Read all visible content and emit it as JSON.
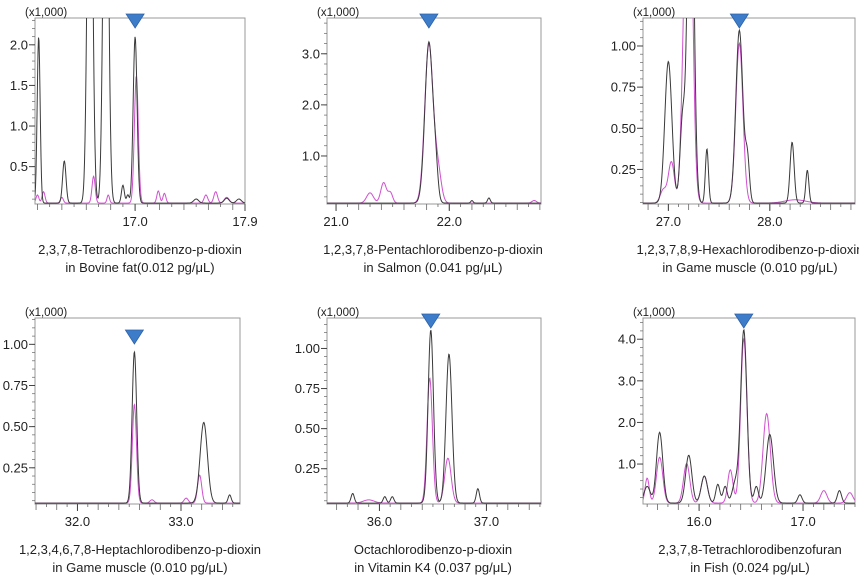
{
  "chart_data": [
    {
      "type": "line",
      "caption_line1": "2,3,7,8-Tetrachlorodibenzo-p-dioxin",
      "caption_line2": "in Bovine fat(0.012 pg/μL)",
      "y_multiplier_label": "(x1,000)",
      "xlim": [
        16.18,
        17.9
      ],
      "ylim": [
        0.04,
        2.33
      ],
      "xticks": [
        "17.0",
        "17.9"
      ],
      "yticks": [
        "0.5",
        "1.0",
        "1.5",
        "2.0"
      ],
      "marker_rt": 17.0,
      "series_colors": [
        "#3a3a3a",
        "#d050d0"
      ],
      "series": [
        {
          "peaks": [
            [
              16.21,
              2.05,
              0.012
            ],
            [
              16.42,
              0.52,
              0.014
            ],
            [
              16.63,
              6,
              0.02
            ],
            [
              16.76,
              6,
              0.02
            ],
            [
              16.9,
              0.22,
              0.012
            ],
            [
              16.94,
              0.1,
              0.01
            ],
            [
              17.0,
              2.05,
              0.016
            ],
            [
              17.5,
              0.05,
              0.02
            ],
            [
              17.75,
              0.06,
              0.02
            ],
            [
              17.85,
              0.05,
              0.02
            ]
          ]
        },
        {
          "peaks": [
            [
              16.2,
              0.1,
              0.012
            ],
            [
              16.25,
              0.14,
              0.012
            ],
            [
              16.4,
              0.07,
              0.012
            ],
            [
              16.66,
              0.33,
              0.013
            ],
            [
              16.78,
              0.1,
              0.01
            ],
            [
              17.01,
              1.57,
              0.016
            ],
            [
              17.19,
              0.15,
              0.012
            ],
            [
              17.24,
              0.12,
              0.012
            ],
            [
              17.58,
              0.1,
              0.015
            ],
            [
              17.66,
              0.14,
              0.015
            ],
            [
              17.75,
              0.07,
              0.02
            ]
          ]
        }
      ]
    },
    {
      "type": "line",
      "caption_line1": "1,2,3,7,8-Pentachlorodibenzo-p-dioxin",
      "caption_line2": "in Salmon (0.041 pg/μL)",
      "y_multiplier_label": "(x1,000)",
      "xlim": [
        20.92,
        22.81
      ],
      "ylim": [
        0.06,
        3.7
      ],
      "xticks": [
        "21.0",
        "22.0"
      ],
      "yticks": [
        "1.0",
        "2.0",
        "3.0"
      ],
      "marker_rt": 21.82,
      "series_colors": [
        "#3a3a3a",
        "#d050d0"
      ],
      "series": [
        {
          "peaks": [
            [
              21.82,
              3.15,
              0.035
            ],
            [
              21.88,
              0.5,
              0.02
            ],
            [
              22.2,
              0.05,
              0.01
            ],
            [
              22.35,
              0.1,
              0.012
            ]
          ]
        },
        {
          "peaks": [
            [
              21.3,
              0.2,
              0.03
            ],
            [
              21.42,
              0.4,
              0.025
            ],
            [
              21.48,
              0.2,
              0.02
            ],
            [
              21.82,
              3.1,
              0.037
            ],
            [
              21.9,
              0.6,
              0.03
            ],
            [
              22.75,
              0.05,
              0.02
            ]
          ]
        }
      ]
    },
    {
      "type": "line",
      "caption_line1": "1,2,3,7,8,9-Hexachlorodibenzo-p-dioxin",
      "caption_line2": "in Game muscle (0.010 pg/μL)",
      "y_multiplier_label": "(x1,000)",
      "xlim": [
        26.75,
        28.84
      ],
      "ylim": [
        0.04,
        1.17
      ],
      "xticks": [
        "27.0",
        "28.0"
      ],
      "yticks": [
        "0.25",
        "0.50",
        "0.75",
        "1.00"
      ],
      "marker_rt": 27.7,
      "series_colors": [
        "#3a3a3a",
        "#d050d0"
      ],
      "series": [
        {
          "peaks": [
            [
              27.0,
              0.86,
              0.035
            ],
            [
              27.14,
              0.5,
              0.025
            ],
            [
              27.22,
              2.5,
              0.03
            ],
            [
              27.38,
              0.33,
              0.015
            ],
            [
              27.7,
              1.05,
              0.035
            ],
            [
              27.78,
              0.25,
              0.02
            ],
            [
              28.22,
              0.37,
              0.02
            ],
            [
              28.37,
              0.2,
              0.015
            ]
          ]
        },
        {
          "peaks": [
            [
              26.95,
              0.08,
              0.03
            ],
            [
              27.03,
              0.25,
              0.03
            ],
            [
              27.14,
              0.35,
              0.025
            ],
            [
              27.2,
              2.5,
              0.035
            ],
            [
              27.7,
              0.97,
              0.035
            ],
            [
              28.25,
              0.02,
              0.1
            ]
          ]
        }
      ]
    },
    {
      "type": "line",
      "caption_line1": "1,2,3,4,6,7,8-Heptachlorodibenzo-p-dioxin",
      "caption_line2": "in Game muscle (0.010 pg/μL)",
      "y_multiplier_label": "(x1,000)",
      "xlim": [
        31.59,
        33.57
      ],
      "ylim": [
        0.03,
        1.16
      ],
      "xticks": [
        "32.0",
        "33.0"
      ],
      "yticks": [
        "0.25",
        "0.50",
        "0.75",
        "1.00"
      ],
      "marker_rt": 32.55,
      "series_colors": [
        "#3a3a3a",
        "#d050d0"
      ],
      "series": [
        {
          "peaks": [
            [
              32.55,
              0.92,
              0.022
            ],
            [
              33.22,
              0.49,
              0.035
            ],
            [
              33.47,
              0.05,
              0.015
            ]
          ]
        },
        {
          "peaks": [
            [
              32.55,
              0.6,
              0.02
            ],
            [
              32.72,
              0.02,
              0.02
            ],
            [
              33.05,
              0.03,
              0.02
            ],
            [
              33.18,
              0.17,
              0.02
            ]
          ]
        }
      ]
    },
    {
      "type": "line",
      "caption_line1": "Octachlorodibenzo-p-dioxin",
      "caption_line2": "in Vitamin K4 (0.037 pg/μL)",
      "y_multiplier_label": "(x1,000)",
      "xlim": [
        35.51,
        37.51
      ],
      "ylim": [
        0.03,
        1.19
      ],
      "xticks": [
        "36.0",
        "37.0"
      ],
      "yticks": [
        "0.25",
        "0.50",
        "0.75",
        "1.00"
      ],
      "marker_rt": 36.48,
      "series_colors": [
        "#3a3a3a",
        "#d050d0"
      ],
      "series": [
        {
          "peaks": [
            [
              35.75,
              0.06,
              0.015
            ],
            [
              36.05,
              0.04,
              0.015
            ],
            [
              36.12,
              0.04,
              0.015
            ],
            [
              36.48,
              1.08,
              0.025
            ],
            [
              36.65,
              0.93,
              0.028
            ],
            [
              36.92,
              0.09,
              0.015
            ]
          ]
        },
        {
          "peaks": [
            [
              35.9,
              0.02,
              0.05
            ],
            [
              36.47,
              0.78,
              0.025
            ],
            [
              36.64,
              0.28,
              0.03
            ]
          ]
        }
      ]
    },
    {
      "type": "line",
      "caption_line1": "2,3,7,8-Tetrachlorodibenzofuran",
      "caption_line2": "in Fish (0.024 pg/μL)",
      "y_multiplier_label": "(x1,000)",
      "xlim": [
        15.46,
        17.5
      ],
      "ylim": [
        0.04,
        4.51
      ],
      "xticks": [
        "16.0",
        "17.0"
      ],
      "yticks": [
        "1.0",
        "2.0",
        "3.0",
        "4.0"
      ],
      "marker_rt": 16.43,
      "series_colors": [
        "#3a3a3a",
        "#d050d0"
      ],
      "series": [
        {
          "peaks": [
            [
              15.5,
              0.4,
              0.03
            ],
            [
              15.62,
              1.7,
              0.03
            ],
            [
              15.9,
              1.15,
              0.03
            ],
            [
              16.05,
              0.65,
              0.03
            ],
            [
              16.18,
              0.45,
              0.02
            ],
            [
              16.25,
              0.4,
              0.02
            ],
            [
              16.35,
              0.5,
              0.03
            ],
            [
              16.43,
              4.15,
              0.03
            ],
            [
              16.55,
              0.4,
              0.02
            ],
            [
              16.68,
              1.65,
              0.035
            ],
            [
              16.97,
              0.2,
              0.02
            ],
            [
              17.35,
              0.3,
              0.02
            ]
          ]
        },
        {
          "peaks": [
            [
              15.5,
              0.6,
              0.02
            ],
            [
              15.62,
              1.1,
              0.03
            ],
            [
              15.88,
              0.95,
              0.03
            ],
            [
              16.05,
              0.65,
              0.03
            ],
            [
              16.3,
              0.8,
              0.025
            ],
            [
              16.43,
              3.95,
              0.03
            ],
            [
              16.65,
              2.15,
              0.035
            ],
            [
              17.2,
              0.3,
              0.03
            ],
            [
              17.45,
              0.25,
              0.03
            ]
          ]
        }
      ]
    }
  ],
  "colors": {
    "marker": "#3d7cc9",
    "frame": "#999999",
    "text": "#222222"
  }
}
